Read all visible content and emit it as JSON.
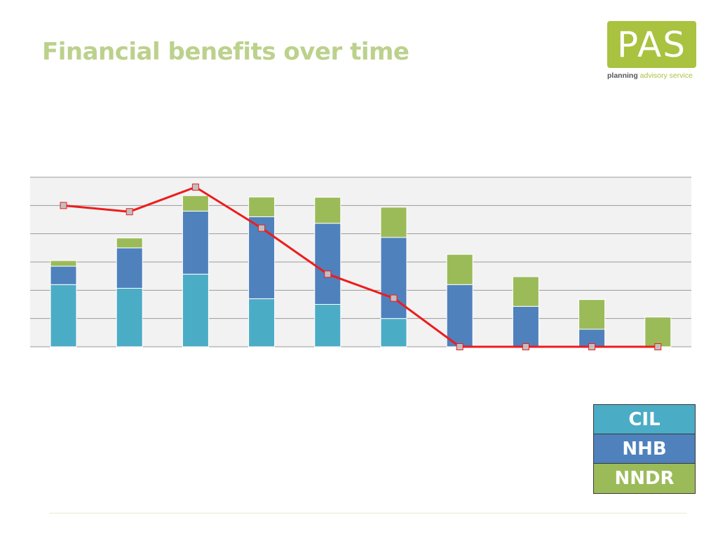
{
  "page": {
    "title": "Financial benefits over time"
  },
  "logo": {
    "text": "PAS",
    "tagline_bold": "planning",
    "tagline_rest": "advisory service",
    "color": "#a9c23f"
  },
  "colors": {
    "title": "#bcd18c",
    "cil": "#4bacc6",
    "nhb": "#4f81bd",
    "nndr": "#9bbb59",
    "line": "#ee1c1c",
    "marker": "#c0c0c0",
    "plot_bg": "#f2f2f2",
    "grid": "#9a9a9a"
  },
  "legend": [
    {
      "label": "CIL",
      "color": "#4bacc6"
    },
    {
      "label": "NHB",
      "color": "#4f81bd"
    },
    {
      "label": "NNDR",
      "color": "#9bbb59"
    }
  ],
  "chart_data": {
    "type": "bar",
    "stacked": true,
    "title": "",
    "xlabel": "",
    "ylabel": "",
    "categories": [
      "",
      "",
      "",
      "",
      "",
      "",
      "",
      "",
      "",
      ""
    ],
    "ylim": [
      0,
      6
    ],
    "grid": true,
    "legend_position": "bottom-right",
    "series": [
      {
        "name": "CIL",
        "type": "bar",
        "values": [
          2.2,
          2.07,
          2.57,
          1.7,
          1.5,
          1.0,
          0,
          0,
          0,
          0
        ]
      },
      {
        "name": "NHB",
        "type": "bar",
        "values": [
          0.65,
          1.43,
          2.23,
          2.9,
          2.87,
          2.87,
          2.2,
          1.43,
          0.62,
          0
        ]
      },
      {
        "name": "NNDR",
        "type": "bar",
        "values": [
          0.2,
          0.35,
          0.55,
          0.7,
          0.92,
          1.07,
          1.07,
          1.05,
          1.05,
          1.05
        ]
      },
      {
        "name": "",
        "type": "line",
        "values": [
          5.0,
          4.78,
          5.65,
          4.2,
          2.57,
          1.72,
          0,
          0,
          0,
          0
        ]
      }
    ]
  }
}
